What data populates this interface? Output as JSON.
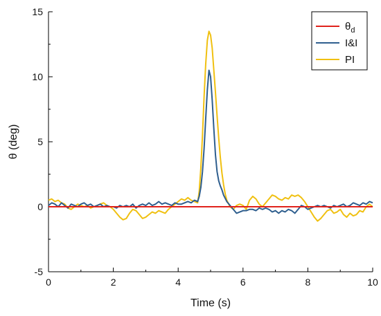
{
  "chart_data": {
    "type": "line",
    "xlabel": "Time (s)",
    "ylabel": "θ (deg)",
    "xlim": [
      0,
      10
    ],
    "ylim": [
      -5,
      15
    ],
    "x_ticks": [
      0,
      2,
      4,
      6,
      8,
      10
    ],
    "y_ticks": [
      -5,
      0,
      5,
      10,
      15
    ],
    "x_tick_labels": [
      "0",
      "2",
      "4",
      "6",
      "8",
      "10"
    ],
    "y_tick_labels": [
      "-5",
      "0",
      "5",
      "10",
      "15"
    ],
    "grid": false,
    "legend": {
      "position": "top-right",
      "entries": [
        {
          "label": "θ",
          "subscript": "d",
          "color": "#e0211b"
        },
        {
          "label": "I&I",
          "color": "#2e5e8e"
        },
        {
          "label": "PI",
          "color": "#f0c010"
        }
      ]
    },
    "series": [
      {
        "name": "θd",
        "color": "#e0211b",
        "x": [
          0,
          10
        ],
        "y": [
          0,
          0
        ]
      },
      {
        "name": "I&I",
        "color": "#2e5e8e",
        "x": [
          0,
          0.1,
          0.2,
          0.3,
          0.4,
          0.5,
          0.6,
          0.7,
          0.8,
          0.9,
          1.0,
          1.1,
          1.2,
          1.3,
          1.4,
          1.5,
          1.6,
          1.7,
          1.8,
          1.9,
          2.0,
          2.1,
          2.2,
          2.3,
          2.4,
          2.5,
          2.6,
          2.7,
          2.8,
          2.9,
          3.0,
          3.1,
          3.2,
          3.3,
          3.4,
          3.5,
          3.6,
          3.7,
          3.8,
          3.9,
          4.0,
          4.1,
          4.2,
          4.3,
          4.4,
          4.5,
          4.6,
          4.65,
          4.7,
          4.75,
          4.8,
          4.85,
          4.9,
          4.95,
          5.0,
          5.05,
          5.1,
          5.15,
          5.2,
          5.25,
          5.3,
          5.35,
          5.4,
          5.5,
          5.6,
          5.7,
          5.8,
          5.9,
          6.0,
          6.1,
          6.2,
          6.3,
          6.4,
          6.5,
          6.6,
          6.7,
          6.8,
          6.9,
          7.0,
          7.1,
          7.2,
          7.3,
          7.4,
          7.5,
          7.6,
          7.7,
          7.8,
          7.9,
          8.0,
          8.1,
          8.2,
          8.3,
          8.4,
          8.5,
          8.6,
          8.7,
          8.8,
          8.9,
          9.0,
          9.1,
          9.2,
          9.3,
          9.4,
          9.5,
          9.6,
          9.7,
          9.8,
          9.9,
          10.0
        ],
        "y": [
          0.1,
          0.3,
          0.2,
          0.0,
          0.3,
          0.1,
          -0.1,
          0.2,
          0.1,
          0.0,
          0.2,
          0.3,
          0.1,
          0.2,
          0.0,
          0.1,
          0.2,
          0.0,
          0.1,
          0.0,
          0.0,
          -0.1,
          0.1,
          0.0,
          0.1,
          0.0,
          0.2,
          -0.1,
          0.1,
          0.2,
          0.1,
          0.3,
          0.1,
          0.2,
          0.4,
          0.2,
          0.3,
          0.2,
          0.1,
          0.3,
          0.2,
          0.2,
          0.3,
          0.4,
          0.3,
          0.5,
          0.4,
          0.8,
          1.5,
          2.7,
          4.5,
          6.8,
          9.0,
          10.5,
          10.0,
          8.2,
          6.0,
          4.0,
          2.7,
          2.0,
          1.6,
          1.3,
          0.9,
          0.4,
          0.1,
          -0.2,
          -0.5,
          -0.4,
          -0.3,
          -0.3,
          -0.2,
          -0.2,
          -0.3,
          -0.1,
          -0.2,
          -0.1,
          -0.2,
          -0.4,
          -0.3,
          -0.5,
          -0.3,
          -0.4,
          -0.2,
          -0.3,
          -0.5,
          -0.2,
          0.1,
          0.0,
          -0.2,
          -0.1,
          0.0,
          0.1,
          0.0,
          0.1,
          0.0,
          -0.1,
          0.1,
          0.0,
          0.1,
          0.2,
          0.0,
          0.1,
          0.3,
          0.2,
          0.1,
          0.3,
          0.2,
          0.4,
          0.3
        ]
      },
      {
        "name": "PI",
        "color": "#f0c010",
        "x": [
          0,
          0.1,
          0.2,
          0.3,
          0.4,
          0.5,
          0.6,
          0.7,
          0.8,
          0.9,
          1.0,
          1.1,
          1.2,
          1.3,
          1.4,
          1.5,
          1.6,
          1.7,
          1.8,
          1.9,
          2.0,
          2.1,
          2.2,
          2.3,
          2.4,
          2.5,
          2.6,
          2.7,
          2.8,
          2.9,
          3.0,
          3.1,
          3.2,
          3.3,
          3.4,
          3.5,
          3.6,
          3.7,
          3.8,
          3.9,
          4.0,
          4.1,
          4.2,
          4.3,
          4.4,
          4.5,
          4.6,
          4.65,
          4.7,
          4.75,
          4.8,
          4.85,
          4.9,
          4.95,
          5.0,
          5.05,
          5.1,
          5.15,
          5.2,
          5.25,
          5.3,
          5.35,
          5.4,
          5.45,
          5.5,
          5.6,
          5.7,
          5.8,
          5.9,
          6.0,
          6.1,
          6.2,
          6.3,
          6.4,
          6.5,
          6.6,
          6.7,
          6.8,
          6.9,
          7.0,
          7.1,
          7.2,
          7.3,
          7.4,
          7.5,
          7.6,
          7.7,
          7.8,
          7.9,
          8.0,
          8.1,
          8.2,
          8.3,
          8.4,
          8.5,
          8.6,
          8.7,
          8.8,
          8.9,
          9.0,
          9.1,
          9.2,
          9.3,
          9.4,
          9.5,
          9.6,
          9.7,
          9.8,
          9.9,
          10.0
        ],
        "y": [
          0.5,
          0.6,
          0.4,
          0.5,
          0.3,
          0.2,
          -0.1,
          -0.2,
          0.0,
          0.2,
          0.1,
          0.0,
          0.1,
          -0.1,
          0.0,
          0.1,
          0.2,
          0.3,
          0.1,
          0.0,
          -0.2,
          -0.5,
          -0.8,
          -1.0,
          -0.9,
          -0.5,
          -0.2,
          -0.3,
          -0.6,
          -0.9,
          -0.8,
          -0.6,
          -0.4,
          -0.5,
          -0.3,
          -0.4,
          -0.5,
          -0.2,
          0.0,
          0.2,
          0.4,
          0.6,
          0.5,
          0.7,
          0.5,
          0.4,
          0.3,
          1.2,
          3.0,
          5.5,
          8.5,
          11.0,
          12.8,
          13.5,
          13.2,
          12.2,
          10.5,
          8.8,
          7.0,
          5.3,
          3.8,
          2.6,
          1.7,
          1.0,
          0.5,
          0.0,
          -0.2,
          0.1,
          0.2,
          0.1,
          -0.2,
          0.5,
          0.8,
          0.6,
          0.2,
          0.0,
          0.3,
          0.6,
          0.9,
          0.8,
          0.6,
          0.5,
          0.7,
          0.6,
          0.9,
          0.8,
          0.9,
          0.7,
          0.4,
          0.0,
          -0.4,
          -0.8,
          -1.1,
          -0.9,
          -0.6,
          -0.3,
          -0.2,
          -0.5,
          -0.4,
          -0.2,
          -0.6,
          -0.8,
          -0.5,
          -0.7,
          -0.6,
          -0.3,
          -0.4,
          0.0,
          0.2,
          0.0
        ]
      }
    ]
  }
}
